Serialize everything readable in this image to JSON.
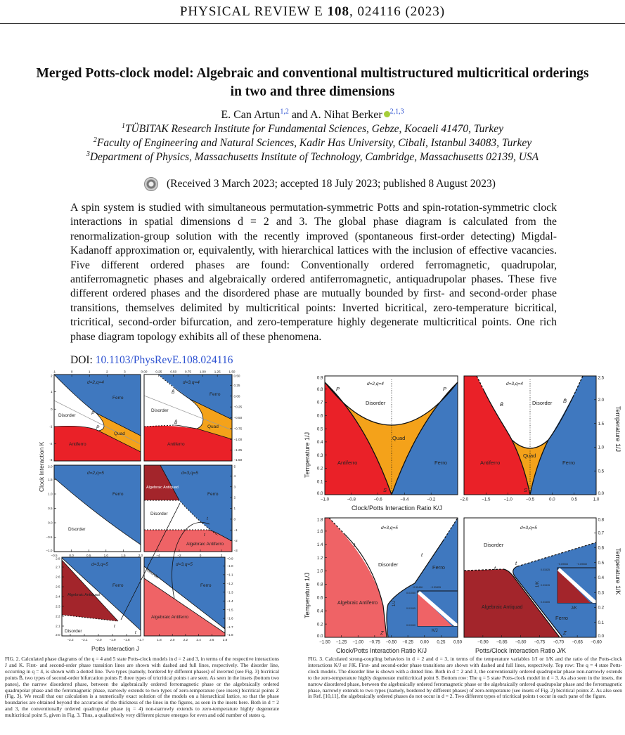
{
  "header": {
    "journal": "PHYSICAL REVIEW E",
    "volume": "108",
    "article": ", 024116 (2023)"
  },
  "title": {
    "line1": "Merged Potts-clock model: Algebraic and conventional multistructured multicritical orderings",
    "line2": "in two and three dimensions"
  },
  "authors": [
    {
      "name": "E. Can Artun",
      "affil": "1,2"
    },
    {
      "name": "A. Nihat Berker",
      "affil": "2,1,3",
      "orcid": true
    }
  ],
  "author_join": " and ",
  "affiliations": [
    {
      "num": "1",
      "text": "TÜBITAK Research Institute for Fundamental Sciences, Gebze, Kocaeli 41470, Turkey"
    },
    {
      "num": "2",
      "text": "Faculty of Engineering and Natural Sciences, Kadir Has University, Cibali, Istanbul 34083, Turkey"
    },
    {
      "num": "3",
      "text": "Department of Physics, Massachusetts Institute of Technology, Cambridge, Massachusetts 02139, USA"
    }
  ],
  "received": "(Received 3 March 2023; accepted 18 July 2023; published 8 August 2023)",
  "abstract": "A spin system is studied with simultaneous permutation-symmetric Potts and spin-rotation-symmetric clock interactions in spatial dimensions d = 2 and 3. The global phase diagram is calculated from the renormalization-group solution with the recently improved (spontaneous first-order detecting) Migdal-Kadanoff approximation or, equivalently, with hierarchical lattices with the inclusion of effective vacancies. Five different ordered phases are found: Conventionally ordered ferromagnetic, quadrupolar, antiferromagnetic phases and algebraically ordered antiferromagnetic, antiquadrupolar phases. These five different ordered phases and the disordered phase are mutually bounded by first- and second-order phase transitions, themselves delimited by multicritical points: Inverted bicritical, zero-temperature bicritical, tricritical, second-order bifurcation, and zero-temperature highly degenerate multicritical points. One rich phase diagram topology exhibits all of these phenomena.",
  "doi": {
    "label": "DOI: ",
    "link": "10.1103/PhysRevE.108.024116"
  },
  "colors": {
    "ferro": "#3f78bf",
    "antiferro": "#ea2128",
    "quad": "#f4a21a",
    "alg_antiferro": "#ef6366",
    "alg_antiquad": "#a3252b",
    "link": "#2a4fd0"
  },
  "fig2": {
    "xlabel": "Potts Interaction J",
    "ylabel": "Clock Interaction K",
    "panels": [
      {
        "id": "tl",
        "title": "d=2,q=4",
        "xlim": [
          -1,
          3.9
        ],
        "ylim": [
          -3,
          2
        ],
        "xticks": [
          "-1",
          "0",
          "1",
          "2",
          "3"
        ],
        "xtickvals": [
          -1,
          0,
          1,
          2,
          3
        ],
        "xside": "top",
        "yticks": [
          "2",
          "1",
          "0",
          "-1",
          "-2",
          "-3"
        ],
        "ytickvals": [
          2,
          1,
          0,
          -1,
          -2,
          -3
        ],
        "yside": "left",
        "labels": {
          "ferro": "Ferro",
          "disorder": "Disorder",
          "quad": "Quad",
          "antiferro": "Antiferro",
          "p1": "P",
          "p2": "P"
        }
      },
      {
        "id": "tr",
        "title": "d=3,q=4",
        "xlim": [
          0,
          1.5
        ],
        "ylim": [
          -1.5,
          0.5
        ],
        "xticks": [
          "0.00",
          "0.25",
          "0.50",
          "0.75",
          "1.00",
          "1.25",
          "1.50"
        ],
        "xtickvals": [
          0,
          0.25,
          0.5,
          0.75,
          1,
          1.25,
          1.5
        ],
        "xside": "top",
        "yticks": [
          "0.50",
          "0.25",
          "0.00",
          "−0.25",
          "−0.50",
          "−0.75",
          "−1.00",
          "−1.25",
          "−1.50"
        ],
        "ytickvals": [
          0.5,
          0.25,
          0,
          -0.25,
          -0.5,
          -0.75,
          -1,
          -1.25,
          -1.5
        ],
        "yside": "right",
        "labels": {
          "ferro": "Ferro",
          "disorder": "Disorder",
          "quad": "Quad",
          "antiferro": "Antiferro",
          "b1": "B̄",
          "b2": "B̄"
        }
      },
      {
        "id": "ml",
        "title": "d=2,q=5",
        "xlim": [
          -0.5,
          2.0
        ],
        "ylim": [
          -1.0,
          2.0
        ],
        "xticks": [
          "−0.5",
          "0.0",
          "0.5",
          "1.0",
          "1.5",
          "2.0"
        ],
        "xtickvals": [
          -0.5,
          0,
          0.5,
          1,
          1.5,
          2
        ],
        "xside": "bottom",
        "yticks": [
          "2.0",
          "1.5",
          "1.0",
          "0.5",
          "0.0",
          "−0.5",
          "−1.0"
        ],
        "ytickvals": [
          2,
          1.5,
          1,
          0.5,
          0,
          -0.5,
          -1
        ],
        "yside": "left",
        "labels": {
          "ferro": "Ferro",
          "disorder": "Disorder"
        }
      },
      {
        "id": "mr",
        "title": "d=3,q=5",
        "xlim": [
          -5.33,
          3
        ],
        "ylim": [
          -3,
          5
        ],
        "xticks": [
          "−4",
          "−2",
          "0",
          "2"
        ],
        "xtickvals": [
          -4,
          -2,
          0,
          2
        ],
        "xside": "bottom",
        "yticks": [
          "5",
          "4",
          "3",
          "2",
          "1",
          "0",
          "−1",
          "−2",
          "−3"
        ],
        "ytickvals": [
          5,
          4,
          3,
          2,
          1,
          0,
          -1,
          -2,
          -3
        ],
        "yside": "right",
        "labels": {
          "ferro": "Ferro",
          "disorder": "Disorder",
          "antiquad": "Algebraic Antiquad",
          "antiferro": "Algebraic Antiferro",
          "t1": "t",
          "t2": "t"
        }
      },
      {
        "id": "bl",
        "title": "d=3,q=5",
        "xlim": [
          -2.26,
          -1.7
        ],
        "ylim": [
          2.0,
          2.8
        ],
        "xticks": [
          "−2.2",
          "−2.1",
          "−2.0",
          "−1.9",
          "−1.8",
          "−1.7"
        ],
        "xtickvals": [
          -2.2,
          -2.1,
          -2.0,
          -1.9,
          -1.8,
          -1.7
        ],
        "xside": "bottom",
        "yticks": [
          "2.8",
          "2.7",
          "2.6",
          "2.5",
          "2.4",
          "2.3",
          "2.2",
          "2.1",
          "2.0"
        ],
        "ytickvals": [
          2.8,
          2.7,
          2.6,
          2.5,
          2.4,
          2.3,
          2.2,
          2.1,
          2.0
        ],
        "yside": "left",
        "labels": {
          "ferro": "Ferro",
          "disorder": "Disorder",
          "antiquad": "Algebraic Antiquad",
          "t1": "t",
          "t2": "t"
        }
      },
      {
        "id": "br",
        "title": "d=3,q=5",
        "xlim": [
          1.57,
          2.8
        ],
        "ylim": [
          -1.8,
          -0.9
        ],
        "xticks": [
          "1.8",
          "2.0",
          "2.2",
          "2.4",
          "2.6",
          "2.8"
        ],
        "xtickvals": [
          1.8,
          2.0,
          2.2,
          2.4,
          2.6,
          2.8
        ],
        "xside": "bottom",
        "yticks": [
          "−0.9",
          "−1.0",
          "−1.1",
          "−1.2",
          "−1.3",
          "−1.4",
          "−1.5",
          "−1.6",
          "−1.7",
          "−1.8"
        ],
        "ytickvals": [
          -0.9,
          -1.0,
          -1.1,
          -1.2,
          -1.3,
          -1.4,
          -1.5,
          -1.6,
          -1.7,
          -1.8
        ],
        "yside": "right",
        "labels": {
          "ferro": "Ferro",
          "disorder": "Disorder",
          "antiferro": "Algebraic Antiferro"
        }
      }
    ],
    "caption_label": "FIG. 2.",
    "caption": "Calculated phase diagrams of the q = 4 and 5 state Potts-clock models in d = 2 and 3, in terms of the respective interactions J and K. First- and second-order phase transition lines are shown with dashed and full lines, respectively. The disorder line, occurring in q = 4, is shown with a dotted line. Two types (namely, bordered by different phases) of inverted (see Fig. 3) bicritical points B̄, two types of second-order bifurcation points P, three types of tricritical points t are seen. As seen in the insets (bottom two panes), the narrow disordered phase, between the algebraically ordered ferromagnetic phase or the algebraically ordered quadrupolar phase and the ferromagnetic phase, narrowly extends to two types of zero-temperature (see insets) bicritical points Z (Fig. 3). We recall that our calculation is a numerically exact solution of the models on a hierarchical lattice, so that the phase boundaries are obtained beyond the accuracies of the thickness of the lines in the figures, as seen in the insets here. Both in d = 2 and 3, the conventionally ordered quadrupolar phase (q = 4) non-narrowly extends to zero-temperature highly degenerate multicritical point S, given in Fig. 3. Thus, a qualitatively very different picture emerges for even and odd number of states q."
  },
  "fig3": {
    "panels": [
      {
        "id": "a",
        "title": "d=2,q=4",
        "xlim": [
          -1.0,
          0.0
        ],
        "ylim": [
          0,
          0.9
        ],
        "xticks": [
          "−1.0",
          "−0.8",
          "−0.6",
          "−0.4",
          "−0.2"
        ],
        "xtickvals": [
          -1,
          -0.8,
          -0.6,
          -0.4,
          -0.2
        ],
        "yticks": [
          "0.0",
          "0.1",
          "0.2",
          "0.3",
          "0.4",
          "0.5",
          "0.6",
          "0.7",
          "0.8",
          "0.9"
        ],
        "ytickvals": [
          0,
          0.1,
          0.2,
          0.3,
          0.4,
          0.5,
          0.6,
          0.7,
          0.8,
          0.9
        ],
        "yside": "left",
        "ylabel": "Temperature 1/J",
        "labels": {
          "disorder": "Disorder",
          "quad": "Quad",
          "antiferro": "Antiferro",
          "ferro": "Ferro",
          "p1": "P",
          "p2": "P",
          "s": "S"
        }
      },
      {
        "id": "b",
        "title": "d=3,q=4",
        "xlim": [
          -2.0,
          1.0
        ],
        "ylim": [
          0,
          2.5
        ],
        "xticks": [
          "−2.0",
          "−1.5",
          "−1.0",
          "−0.5",
          "0.0",
          "0.5",
          "1.0"
        ],
        "xtickvals": [
          -2,
          -1.5,
          -1,
          -0.5,
          0,
          0.5,
          1
        ],
        "yticks": [
          "0.0",
          "0.5",
          "1.0",
          "1.5",
          "2.0",
          "2.5"
        ],
        "ytickvals": [
          0,
          0.5,
          1,
          1.5,
          2,
          2.5
        ],
        "yside": "right",
        "ylabel": "Temperature 1/J",
        "labels": {
          "disorder": "Disorder",
          "quad": "Quad",
          "antiferro": "Antiferro",
          "ferro": "Ferro",
          "b1": "B̄",
          "b2": "B̄",
          "s": "S"
        }
      },
      {
        "id": "c",
        "title": "d=3,q=5",
        "xlim": [
          -1.5,
          0.5
        ],
        "ylim": [
          0,
          1.8
        ],
        "xticks": [
          "−1.50",
          "−1.25",
          "−1.00",
          "−0.75",
          "−0.50",
          "−0.25",
          "0.00",
          "0.25",
          "0.50"
        ],
        "xtickvals": [
          -1.5,
          -1.25,
          -1,
          -0.75,
          -0.5,
          -0.25,
          0,
          0.25,
          0.5
        ],
        "yticks": [
          "0.0",
          "0.2",
          "0.4",
          "0.6",
          "0.8",
          "1.0",
          "1.2",
          "1.4",
          "1.6",
          "1.8"
        ],
        "ytickvals": [
          0,
          0.2,
          0.4,
          0.6,
          0.8,
          1.0,
          1.2,
          1.4,
          1.6,
          1.8
        ],
        "yside": "left",
        "ylabel": "Temperature 1/J",
        "xlabel": "Clock/Potts Interaction Ratio K/J",
        "labels": {
          "disorder": "Disorder",
          "ferro": "Ferro",
          "antiferro": "Algebraic Antiferro",
          "t1": "t",
          "t2": "t",
          "z": "Z"
        },
        "inset": {
          "xticks": [
            "−0.55456",
            "−0.55455"
          ],
          "yticks": [
            "0.01050",
            "0.01045",
            "0.01040"
          ],
          "xlabel": "K/J",
          "ylabel": "1/J"
        }
      },
      {
        "id": "d",
        "title": "d=3,q=5",
        "xlim": [
          -0.95,
          -0.6
        ],
        "ylim": [
          0,
          0.8
        ],
        "xticks": [
          "−0.90",
          "−0.85",
          "−0.80",
          "−0.75",
          "−0.70",
          "−0.65",
          "−0.60"
        ],
        "xtickvals": [
          -0.9,
          -0.85,
          -0.8,
          -0.75,
          -0.7,
          -0.65,
          -0.6
        ],
        "yticks": [
          "0.0",
          "0.1",
          "0.2",
          "0.3",
          "0.4",
          "0.5",
          "0.6",
          "0.7",
          "0.8"
        ],
        "ytickvals": [
          0,
          0.1,
          0.2,
          0.3,
          0.4,
          0.5,
          0.6,
          0.7,
          0.8
        ],
        "yside": "right",
        "ylabel": "Temperature 1/K",
        "xlabel": "Potts/Clock Interaction Ratio J/K",
        "labels": {
          "disorder": "Disorder",
          "ferro": "Ferro",
          "antiquad": "Algebraic Antiquad",
          "t1": "t",
          "t2": "t",
          "z": "Z"
        },
        "inset": {
          "xticks": [
            "−0.69564",
            "−0.69560"
          ],
          "yticks": [
            "0.01525",
            "0.01515",
            "0.01505"
          ],
          "xlabel": "J/K",
          "ylabel": "1/K"
        }
      }
    ],
    "top_xlabel": "Clock/Potts Interaction Ratio K/J",
    "caption_label": "FIG. 3.",
    "caption": "Calculated strong-coupling behaviors in d = 2 and d = 3, in terms of the temperature variables 1/J or 1/K and the ratio of the Potts-clock interactions K/J or J/K. First- and second-order phase transitions are shown with dashed and full lines, respectively. Top row: The q = 4 state Potts-clock models. The disorder line is shown with a dotted line. Both in d = 2 and 3, the conventionally ordered quadrupolar phase non-narrowly extends to the zero-temperature highly degenerate multicritical point S. Bottom row: The q = 5 state Potts-clock model in d = 3. As also seen in the insets, the narrow disordered phase, between the algebraically ordered ferromagnetic phase or the algebraically ordered quadrupolar phase and the ferromagnetic phase, narrowly extends to two types (namely, bordered by different phases) of zero-temperature (see insets of Fig. 2) bicritical points Z. As also seen in Ref. [10,11], the algebraically ordered phases do not occur in d = 2. Two different types of tricritical points t occur in each pane of the figure."
  }
}
